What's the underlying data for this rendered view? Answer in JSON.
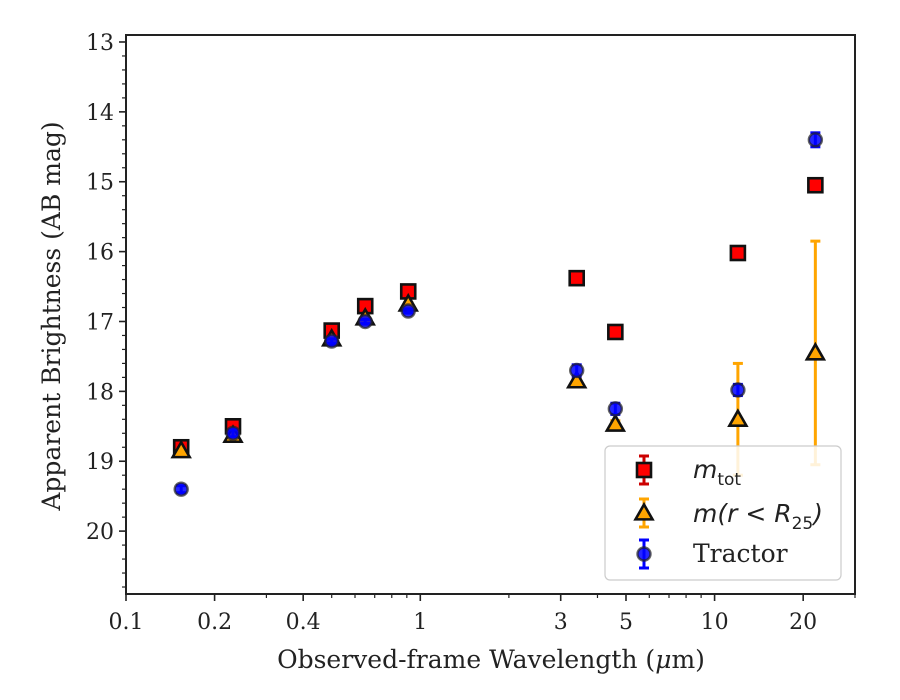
{
  "chart_data": {
    "type": "scatter",
    "xlabel_pre": "Observed-frame Wavelength (",
    "xlabel_mu": "μ",
    "xlabel_post": "m)",
    "ylabel": "Apparent Brightness (AB mag)",
    "xscale": "log",
    "xlim": [
      0.1,
      30
    ],
    "ylim": [
      20.9,
      12.9
    ],
    "y_inverted": true,
    "xticks": [
      0.1,
      0.2,
      0.4,
      1,
      3,
      5,
      10,
      20
    ],
    "xtick_labels": [
      "0.1",
      "0.2",
      "0.4",
      "1",
      "3",
      "5",
      "10",
      "20"
    ],
    "yticks": [
      13,
      14,
      15,
      16,
      17,
      18,
      19,
      20
    ],
    "ytick_labels": [
      "13",
      "14",
      "15",
      "16",
      "17",
      "18",
      "19",
      "20"
    ],
    "legend_position": "lower-right",
    "series": [
      {
        "key": "mtot",
        "marker": "square",
        "color": "#ff0000",
        "errcolor": "#cc0000",
        "x": [
          0.154,
          0.231,
          0.5,
          0.65,
          0.91,
          3.4,
          4.6,
          12.0,
          22.0
        ],
        "y": [
          18.8,
          18.5,
          17.13,
          16.78,
          16.57,
          16.38,
          17.15,
          16.02,
          15.05
        ],
        "err": [
          0.05,
          0.05,
          0.02,
          0.02,
          0.02,
          0.02,
          0.02,
          0.03,
          0.03
        ]
      },
      {
        "key": "mr25",
        "marker": "triangle",
        "color": "#ffa500",
        "errcolor": "#ffa500",
        "x": [
          0.154,
          0.231,
          0.5,
          0.65,
          0.91,
          3.4,
          4.6,
          12.0,
          22.0
        ],
        "y": [
          18.85,
          18.63,
          17.25,
          16.95,
          16.75,
          17.85,
          18.47,
          18.4,
          17.45
        ],
        "err": [
          0.02,
          0.02,
          0.02,
          0.02,
          0.02,
          0.03,
          0.05,
          0.8,
          1.6
        ]
      },
      {
        "key": "tractor",
        "marker": "circle",
        "color": "#0000ff",
        "errcolor": "#0000ff",
        "x": [
          0.154,
          0.231,
          0.5,
          0.65,
          0.91,
          3.4,
          4.6,
          12.0,
          22.0
        ],
        "y": [
          19.4,
          18.6,
          17.28,
          17.0,
          16.85,
          17.7,
          18.25,
          17.98,
          14.4
        ],
        "err": [
          0.05,
          0.05,
          0.03,
          0.03,
          0.03,
          0.08,
          0.08,
          0.08,
          0.1
        ]
      }
    ],
    "legend": {
      "mtot": {
        "base": "m",
        "sub": "tot"
      },
      "mr25": {
        "open": "m(r < R",
        "sub": "25",
        "close": ")"
      },
      "tractor": {
        "text": "Tractor"
      }
    }
  }
}
